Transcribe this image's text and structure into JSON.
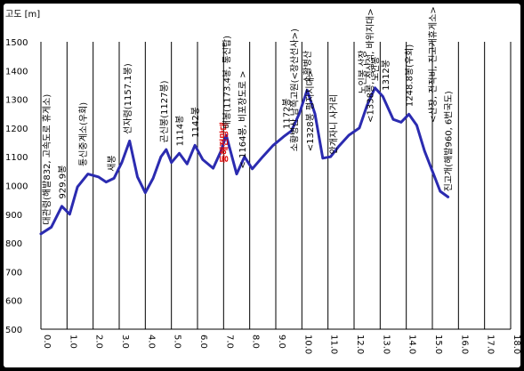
{
  "chart_data": {
    "type": "line",
    "title": "",
    "ylabel": "고도 [m]",
    "xlabel": "",
    "ylim": [
      500,
      1500
    ],
    "xlim": [
      0,
      18
    ],
    "yticks": [
      500,
      600,
      700,
      800,
      900,
      1000,
      1100,
      1200,
      1300,
      1400,
      1500
    ],
    "xtick_labels": [
      "0.0",
      "1.0",
      "2.0",
      "3.0",
      "4.0",
      "5.0",
      "6.0",
      "7.0",
      "8.0",
      "9.0",
      "10.0",
      "11.0",
      "12.0",
      "13.0",
      "14.0",
      "15.0",
      "16.0",
      "17.0",
      "18.0"
    ],
    "grid": {
      "vertical": true,
      "horizontal": false
    },
    "line_color": "#2b2bb0",
    "series": [
      {
        "values": [
          [
            0.0,
            832
          ],
          [
            0.4,
            855
          ],
          [
            0.8,
            928
          ],
          [
            1.1,
            900
          ],
          [
            1.4,
            995
          ],
          [
            1.8,
            1040
          ],
          [
            2.2,
            1030
          ],
          [
            2.5,
            1012
          ],
          [
            2.8,
            1025
          ],
          [
            3.1,
            1080
          ],
          [
            3.4,
            1155
          ],
          [
            3.7,
            1030
          ],
          [
            4.0,
            975
          ],
          [
            4.3,
            1025
          ],
          [
            4.6,
            1100
          ],
          [
            4.8,
            1125
          ],
          [
            5.0,
            1080
          ],
          [
            5.3,
            1112
          ],
          [
            5.6,
            1075
          ],
          [
            5.9,
            1140
          ],
          [
            6.2,
            1090
          ],
          [
            6.6,
            1060
          ],
          [
            6.9,
            1120
          ],
          [
            7.1,
            1175
          ],
          [
            7.5,
            1040
          ],
          [
            7.8,
            1100
          ],
          [
            8.1,
            1058
          ],
          [
            8.5,
            1100
          ],
          [
            8.9,
            1140
          ],
          [
            9.3,
            1170
          ],
          [
            9.6,
            1190
          ],
          [
            9.9,
            1250
          ],
          [
            10.2,
            1332
          ],
          [
            10.5,
            1250
          ],
          [
            10.8,
            1095
          ],
          [
            11.1,
            1100
          ],
          [
            11.4,
            1135
          ],
          [
            11.8,
            1175
          ],
          [
            12.2,
            1200
          ],
          [
            12.5,
            1280
          ],
          [
            12.8,
            1340
          ],
          [
            13.1,
            1310
          ],
          [
            13.5,
            1230
          ],
          [
            13.8,
            1220
          ],
          [
            14.1,
            1248
          ],
          [
            14.4,
            1210
          ],
          [
            14.7,
            1120
          ],
          [
            15.0,
            1050
          ],
          [
            15.3,
            980
          ],
          [
            15.6,
            960
          ]
        ]
      }
    ],
    "annotations": [
      {
        "text": "대관령(해발832, 고속도로 휴게소)",
        "x": 0.2,
        "y": 845,
        "color": "#000000"
      },
      {
        "text": "929.9봉",
        "x": 0.8,
        "y": 935,
        "color": "#000000"
      },
      {
        "text": "통신중계소(우회)",
        "x": 1.6,
        "y": 1048,
        "color": "#000000"
      },
      {
        "text": "새봉",
        "x": 2.7,
        "y": 1030,
        "color": "#000000"
      },
      {
        "text": "선자령(1157.1봉)",
        "x": 3.3,
        "y": 1160,
        "color": "#000000"
      },
      {
        "text": "곤신봉(1127봉)",
        "x": 4.7,
        "y": 1130,
        "color": "#000000"
      },
      {
        "text": "1114봉",
        "x": 5.3,
        "y": 1118,
        "color": "#000000"
      },
      {
        "text": "1142봉",
        "x": 5.9,
        "y": 1148,
        "color": "#000000"
      },
      {
        "text": "동해전망대",
        "x": 7.0,
        "y": 1060,
        "color": "#e00000"
      },
      {
        "text": "매봉(1173.4봉, 통신탑)",
        "x": 7.1,
        "y": 1180,
        "color": "#000000"
      },
      {
        "text": "< 1164봉, 비포장도로 >",
        "x": 7.7,
        "y": 1040,
        "color": "#000000"
      },
      {
        "text": "1172봉",
        "x": 9.4,
        "y": 1178,
        "color": "#000000"
      },
      {
        "text": "소황병산",
        "x": 10.2,
        "y": 1337,
        "color": "#000000"
      },
      {
        "text": "소황병산 남쪽고원(<장산선사>)",
        "x": 9.7,
        "y": 1100,
        "color": "#000000"
      },
      {
        "text": "<1328봉 평지지대>",
        "x": 10.3,
        "y": 1100,
        "color": "#000000"
      },
      {
        "text": "안개자니 사거리",
        "x": 11.2,
        "y": 1090,
        "color": "#000000"
      },
      {
        "text": "노인봉 산장",
        "x": 12.3,
        "y": 1300,
        "color": "#000000"
      },
      {
        "text": "노인봉",
        "x": 12.8,
        "y": 1345,
        "color": "#000000"
      },
      {
        "text": "1312봉",
        "x": 13.2,
        "y": 1312,
        "color": "#000000"
      },
      {
        "text": "<1338봉, 정상석, 바위지대>",
        "x": 12.6,
        "y": 1200,
        "color": "#000000"
      },
      {
        "text": "1248.8봉(우회)",
        "x": 14.1,
        "y": 1255,
        "color": "#000000"
      },
      {
        "text": "<산장, 전적비, 진고개휴게소>",
        "x": 15.0,
        "y": 1200,
        "color": "#000000"
      },
      {
        "text": "진고개(해발960, 6번국도)",
        "x": 15.6,
        "y": 960,
        "color": "#000000"
      }
    ]
  }
}
